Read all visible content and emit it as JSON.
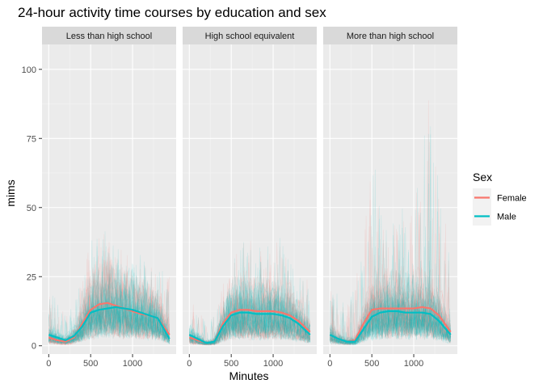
{
  "chart_data": {
    "type": "line",
    "title": "24-hour activity time courses by education and sex",
    "xlabel": "Minutes",
    "ylabel": "mims",
    "xlim": [
      -80,
      1520
    ],
    "ylim": [
      -3,
      109
    ],
    "x_ticks": [
      0,
      500,
      1000
    ],
    "y_ticks": [
      0,
      25,
      50,
      75,
      100
    ],
    "grid": true,
    "legend": {
      "title": "Sex",
      "position": "right",
      "entries": [
        {
          "name": "Female",
          "color": "#F8766D"
        },
        {
          "name": "Male",
          "color": "#00BFC4"
        }
      ]
    },
    "panels": [
      {
        "label": "Less than high school",
        "smooth": {
          "Female": {
            "x": [
              0,
              100,
              200,
              300,
              400,
              500,
              600,
              700,
              800,
              900,
              1000,
              1100,
              1200,
              1300,
              1440
            ],
            "y": [
              3,
              2,
              1.5,
              3,
              8,
              13,
              15,
              15.5,
              14.5,
              13.5,
              12.5,
              11.5,
              11,
              10,
              4
            ]
          },
          "Male": {
            "x": [
              0,
              100,
              200,
              300,
              400,
              500,
              600,
              700,
              800,
              900,
              1000,
              1100,
              1200,
              1300,
              1440
            ],
            "y": [
              4,
              3,
              2,
              3.5,
              7,
              12,
              13,
              13.5,
              14,
              13.5,
              13,
              12,
              11,
              10,
              2.5
            ]
          }
        },
        "raw_upper_envelope": {
          "x": [
            0,
            100,
            200,
            300,
            400,
            500,
            600,
            700,
            800,
            900,
            1000,
            1100,
            1200,
            1300,
            1440
          ],
          "y": [
            22,
            16,
            12,
            14,
            26,
            38,
            40,
            42,
            38,
            34,
            36,
            34,
            30,
            28,
            26
          ]
        }
      },
      {
        "label": "High school equivalent",
        "smooth": {
          "Female": {
            "x": [
              0,
              100,
              200,
              300,
              400,
              500,
              600,
              700,
              800,
              900,
              1000,
              1100,
              1200,
              1300,
              1440
            ],
            "y": [
              3,
              2,
              1,
              1.5,
              8,
              12,
              13,
              13,
              12.5,
              12.5,
              12.5,
              12,
              11,
              9,
              5
            ]
          },
          "Male": {
            "x": [
              0,
              100,
              200,
              300,
              400,
              500,
              600,
              700,
              800,
              900,
              1000,
              1100,
              1200,
              1300,
              1440
            ],
            "y": [
              4,
              2.5,
              1,
              1.5,
              7,
              11,
              12,
              12,
              11.5,
              11.5,
              11.5,
              11,
              10,
              8,
              4
            ]
          }
        },
        "raw_upper_envelope": {
          "x": [
            0,
            100,
            200,
            300,
            400,
            500,
            600,
            700,
            800,
            900,
            1000,
            1100,
            1200,
            1300,
            1440
          ],
          "y": [
            18,
            12,
            10,
            12,
            22,
            30,
            36,
            40,
            38,
            32,
            44,
            38,
            30,
            26,
            24
          ]
        }
      },
      {
        "label": "More than high school",
        "smooth": {
          "Female": {
            "x": [
              0,
              100,
              200,
              300,
              400,
              500,
              600,
              700,
              800,
              900,
              1000,
              1100,
              1200,
              1300,
              1440
            ],
            "y": [
              4,
              2.5,
              1.5,
              2,
              8,
              13,
              13.5,
              13.5,
              13.5,
              13.5,
              13.5,
              14,
              13.5,
              11,
              5
            ]
          },
          "Male": {
            "x": [
              0,
              100,
              200,
              300,
              400,
              500,
              600,
              700,
              800,
              900,
              1000,
              1100,
              1200,
              1300,
              1440
            ],
            "y": [
              4,
              2.5,
              1.5,
              1.5,
              6,
              10.5,
              12,
              12.5,
              12.5,
              12,
              12,
              12,
              11.5,
              9,
              4
            ]
          }
        },
        "raw_upper_envelope": {
          "x": [
            0,
            100,
            200,
            300,
            400,
            500,
            600,
            700,
            800,
            900,
            1000,
            1100,
            1200,
            1300,
            1440
          ],
          "y": [
            24,
            18,
            14,
            22,
            40,
            70,
            58,
            44,
            46,
            52,
            48,
            72,
            104,
            58,
            34
          ]
        }
      }
    ]
  }
}
